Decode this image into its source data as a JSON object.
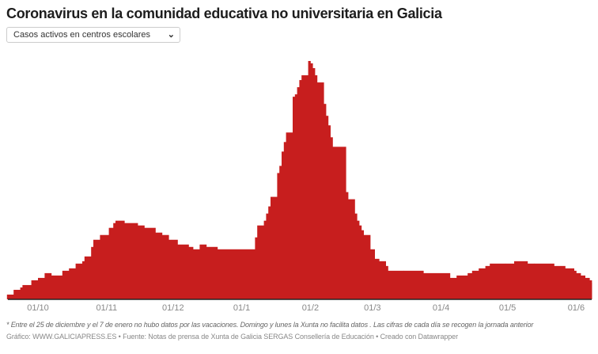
{
  "title": "Coronavirus en la comunidad educativa no universitaria en Galicia",
  "dropdown": {
    "selected": "Casos activos en centros escolares"
  },
  "note": "* Entre el 25 de diciembre y el 7 de enero no hubo datos por las vacaciones. Domingo y lunes la Xunta no facilita datos . Las cifras de cada día se recogen la jornada anterior",
  "source": "Gráfico: WWW.GALICIAPRESS.ES • Fuente: Notas de prensa de Xunta de Galicia SERGAS Consellería de Educación • Creado con Datawrapper",
  "colors": {
    "area": "#c71e1e",
    "axis": "#222222",
    "tick_text": "#888888"
  },
  "chart_data": {
    "type": "area",
    "step": true,
    "title": "",
    "xlabel": "",
    "ylabel": "",
    "y_axis_shown": false,
    "y_units": "relative (peak = 100)",
    "grid": false,
    "x_ticks": [
      "01/10",
      "01/11",
      "01/12",
      "01/1",
      "01/2",
      "01/3",
      "01/4",
      "01/5",
      "01/6"
    ],
    "x_tick_dates": [
      "2020-10-01",
      "2020-11-01",
      "2020-12-01",
      "2021-01-01",
      "2021-02-01",
      "2021-03-01",
      "2021-04-01",
      "2021-05-01",
      "2021-06-01"
    ],
    "x_range": [
      "2020-09-17",
      "2021-06-09"
    ],
    "ylim": [
      0,
      100
    ],
    "points": [
      [
        "2020-09-17",
        2
      ],
      [
        "2020-09-20",
        4
      ],
      [
        "2020-09-23",
        5
      ],
      [
        "2020-09-24",
        6
      ],
      [
        "2020-09-28",
        8
      ],
      [
        "2020-10-01",
        9
      ],
      [
        "2020-10-04",
        11
      ],
      [
        "2020-10-07",
        10
      ],
      [
        "2020-10-08",
        10
      ],
      [
        "2020-10-12",
        12
      ],
      [
        "2020-10-15",
        13
      ],
      [
        "2020-10-18",
        15
      ],
      [
        "2020-10-21",
        16
      ],
      [
        "2020-10-22",
        18
      ],
      [
        "2020-10-25",
        22
      ],
      [
        "2020-10-26",
        25
      ],
      [
        "2020-10-29",
        27
      ],
      [
        "2020-11-02",
        30
      ],
      [
        "2020-11-04",
        32
      ],
      [
        "2020-11-05",
        33
      ],
      [
        "2020-11-09",
        32
      ],
      [
        "2020-11-15",
        31
      ],
      [
        "2020-11-18",
        30
      ],
      [
        "2020-11-23",
        28
      ],
      [
        "2020-11-26",
        27
      ],
      [
        "2020-11-29",
        25
      ],
      [
        "2020-12-03",
        23
      ],
      [
        "2020-12-08",
        22
      ],
      [
        "2020-12-10",
        21
      ],
      [
        "2020-12-13",
        23
      ],
      [
        "2020-12-16",
        22
      ],
      [
        "2020-12-21",
        21
      ],
      [
        "2021-01-07",
        26
      ],
      [
        "2021-01-08",
        31
      ],
      [
        "2021-01-11",
        33
      ],
      [
        "2021-01-12",
        36
      ],
      [
        "2021-01-13",
        39
      ],
      [
        "2021-01-14",
        43
      ],
      [
        "2021-01-17",
        53
      ],
      [
        "2021-01-18",
        56
      ],
      [
        "2021-01-19",
        62
      ],
      [
        "2021-01-20",
        66
      ],
      [
        "2021-01-21",
        70
      ],
      [
        "2021-01-24",
        85
      ],
      [
        "2021-01-25",
        86
      ],
      [
        "2021-01-26",
        89
      ],
      [
        "2021-01-27",
        92
      ],
      [
        "2021-01-28",
        94
      ],
      [
        "2021-01-31",
        100
      ],
      [
        "2021-02-01",
        99
      ],
      [
        "2021-02-02",
        97
      ],
      [
        "2021-02-03",
        94
      ],
      [
        "2021-02-04",
        91
      ],
      [
        "2021-02-07",
        82
      ],
      [
        "2021-02-08",
        77
      ],
      [
        "2021-02-09",
        73
      ],
      [
        "2021-02-10",
        68
      ],
      [
        "2021-02-11",
        64
      ],
      [
        "2021-02-17",
        45
      ],
      [
        "2021-02-18",
        42
      ],
      [
        "2021-02-21",
        36
      ],
      [
        "2021-02-22",
        33
      ],
      [
        "2021-02-23",
        31
      ],
      [
        "2021-02-24",
        29
      ],
      [
        "2021-02-25",
        27
      ],
      [
        "2021-02-28",
        21
      ],
      [
        "2021-03-02",
        17
      ],
      [
        "2021-03-04",
        16
      ],
      [
        "2021-03-07",
        14
      ],
      [
        "2021-03-08",
        12
      ],
      [
        "2021-03-15",
        12
      ],
      [
        "2021-03-24",
        11
      ],
      [
        "2021-04-05",
        9
      ],
      [
        "2021-04-08",
        10
      ],
      [
        "2021-04-11",
        10
      ],
      [
        "2021-04-13",
        11
      ],
      [
        "2021-04-15",
        12
      ],
      [
        "2021-04-18",
        13
      ],
      [
        "2021-04-21",
        14
      ],
      [
        "2021-04-23",
        15
      ],
      [
        "2021-04-30",
        15
      ],
      [
        "2021-05-04",
        16
      ],
      [
        "2021-05-10",
        15
      ],
      [
        "2021-05-13",
        15
      ],
      [
        "2021-05-22",
        14
      ],
      [
        "2021-05-25",
        14
      ],
      [
        "2021-05-27",
        13
      ],
      [
        "2021-05-31",
        12
      ],
      [
        "2021-06-01",
        11
      ],
      [
        "2021-06-03",
        10
      ],
      [
        "2021-06-05",
        9
      ],
      [
        "2021-06-07",
        8
      ],
      [
        "2021-06-08",
        7
      ]
    ]
  }
}
